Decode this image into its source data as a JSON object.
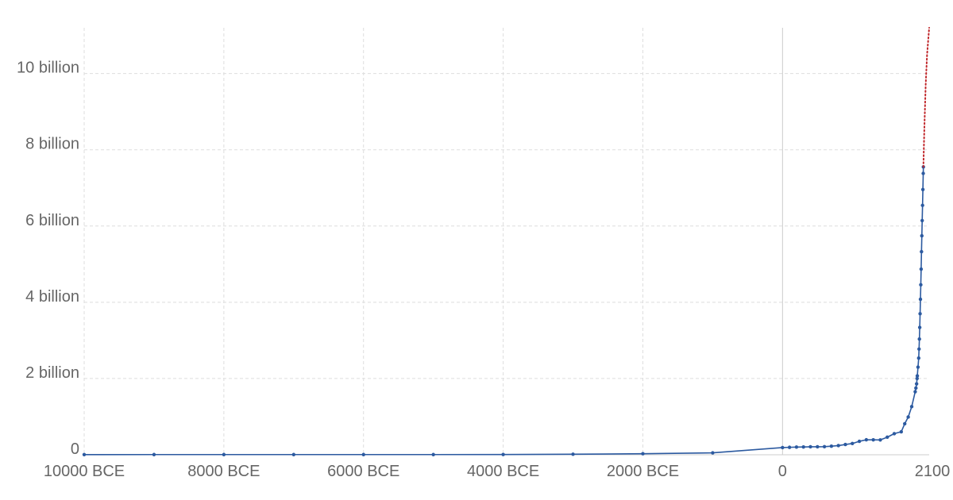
{
  "chart_data": {
    "type": "line",
    "title": "",
    "xlabel": "",
    "ylabel": "",
    "xlim": [
      -10000,
      2100
    ],
    "ylim": [
      0,
      11200000000
    ],
    "x_scale": "linear",
    "grid": true,
    "legend": "none",
    "x_ticks": [
      {
        "value": -10000,
        "label": "10000 BCE"
      },
      {
        "value": -8000,
        "label": "8000 BCE"
      },
      {
        "value": -6000,
        "label": "6000 BCE"
      },
      {
        "value": -4000,
        "label": "4000 BCE"
      },
      {
        "value": -2000,
        "label": "2000 BCE"
      },
      {
        "value": 0,
        "label": "0"
      },
      {
        "value": 2100,
        "label": "2100"
      }
    ],
    "x_grid_values": [
      -10000,
      -8000,
      -6000,
      -4000,
      -2000,
      0
    ],
    "y_ticks": [
      {
        "value": 0,
        "label": "0"
      },
      {
        "value": 2000000000,
        "label": "2 billion"
      },
      {
        "value": 4000000000,
        "label": "4 billion"
      },
      {
        "value": 6000000000,
        "label": "6 billion"
      },
      {
        "value": 8000000000,
        "label": "8 billion"
      },
      {
        "value": 10000000000,
        "label": "10 billion"
      }
    ],
    "series": [
      {
        "color": "#2c5aa0",
        "style": "solid",
        "markers": true,
        "x": [
          -10000,
          -9000,
          -8000,
          -7000,
          -6000,
          -5000,
          -4000,
          -3000,
          -2000,
          -1000,
          0,
          100,
          200,
          300,
          400,
          500,
          600,
          700,
          800,
          900,
          1000,
          1100,
          1200,
          1300,
          1400,
          1500,
          1600,
          1700,
          1750,
          1800,
          1850,
          1900,
          1910,
          1920,
          1927,
          1930,
          1940,
          1950,
          1955,
          1960,
          1965,
          1970,
          1975,
          1980,
          1985,
          1990,
          1995,
          2000,
          2005,
          2010,
          2015,
          2017
        ],
        "y": [
          4000000,
          5000000,
          5000000,
          5000000,
          5000000,
          5000000,
          7000000,
          14000000,
          27000000,
          50000000,
          188000000,
          195000000,
          202000000,
          205000000,
          209000000,
          210000000,
          213000000,
          226000000,
          240000000,
          269000000,
          295000000,
          353000000,
          393000000,
          392000000,
          390000000,
          461000000,
          554000000,
          603000000,
          814000000,
          990000000,
          1263000000,
          1654000000,
          1750000000,
          1860000000,
          2000000000,
          2070000000,
          2300000000,
          2536000000,
          2773000000,
          3035000000,
          3340000000,
          3700000000,
          4079000000,
          4458000000,
          4871000000,
          5327000000,
          5744000000,
          6143000000,
          6542000000,
          6957000000,
          7380000000,
          7550000000
        ]
      },
      {
        "color": "#c0262a",
        "style": "dotted",
        "markers": false,
        "x": [
          2017,
          2030,
          2050,
          2070,
          2100
        ],
        "y": [
          7550000000,
          8500000000,
          9700000000,
          10500000000,
          11200000000
        ]
      }
    ]
  }
}
